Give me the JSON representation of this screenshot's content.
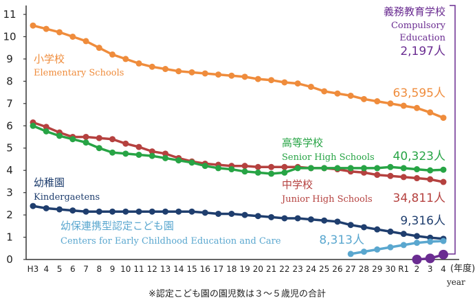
{
  "chart_data": {
    "type": "line",
    "x_categories": [
      "H3",
      "4",
      "5",
      "6",
      "7",
      "8",
      "9",
      "10",
      "11",
      "12",
      "13",
      "14",
      "15",
      "16",
      "17",
      "18",
      "19",
      "20",
      "21",
      "22",
      "23",
      "24",
      "25",
      "26",
      "27",
      "28",
      "29",
      "30",
      "R1",
      "2",
      "3",
      "4"
    ],
    "x_unit": "(年度)",
    "x_unit_en": "year",
    "y_ticks": [
      0,
      1,
      2,
      3,
      4,
      5,
      6,
      7,
      8,
      9,
      10,
      11
    ],
    "ylim": [
      0,
      11.4
    ],
    "grid": false,
    "note": "※認定こども園の園児数は３～５歳児の合計",
    "series": [
      {
        "key": "elementary",
        "name_jp": "小学校",
        "name_en": "Elementary Schools",
        "end_label": "63,595人",
        "color": "#ef8c3c",
        "start_index": 0,
        "values": [
          10.5,
          10.35,
          10.2,
          10.0,
          9.8,
          9.5,
          9.2,
          9.0,
          8.8,
          8.65,
          8.55,
          8.45,
          8.4,
          8.35,
          8.3,
          8.25,
          8.2,
          8.1,
          8.05,
          7.95,
          7.9,
          7.75,
          7.55,
          7.45,
          7.35,
          7.2,
          7.1,
          7.0,
          6.9,
          6.8,
          6.6,
          6.36
        ]
      },
      {
        "key": "junior",
        "name_jp": "中学校",
        "name_en": "Junior High Schools",
        "end_label": "34,811人",
        "color": "#b5413f",
        "start_index": 0,
        "values": [
          6.15,
          5.95,
          5.7,
          5.5,
          5.5,
          5.45,
          5.4,
          5.2,
          5.05,
          4.85,
          4.75,
          4.55,
          4.4,
          4.3,
          4.25,
          4.2,
          4.2,
          4.15,
          4.15,
          4.15,
          4.15,
          4.1,
          4.1,
          4.05,
          3.95,
          3.9,
          3.8,
          3.75,
          3.7,
          3.65,
          3.6,
          3.48
        ]
      },
      {
        "key": "senior",
        "name_jp": "高等学校",
        "name_en": "Senior High Schools",
        "end_label": "40,323人",
        "color": "#27a445",
        "start_index": 0,
        "values": [
          6.0,
          5.75,
          5.55,
          5.4,
          5.25,
          5.0,
          4.8,
          4.75,
          4.7,
          4.65,
          4.55,
          4.45,
          4.35,
          4.2,
          4.1,
          4.05,
          3.95,
          3.9,
          3.85,
          3.9,
          4.1,
          4.1,
          4.1,
          4.1,
          4.1,
          4.1,
          4.1,
          4.15,
          4.1,
          4.05,
          4.0,
          4.03
        ]
      },
      {
        "key": "kindergarten",
        "name_jp": "幼稚園",
        "name_en": "Kindergaetens",
        "end_label": "9,316人",
        "color": "#1f3e6e",
        "start_index": 0,
        "values": [
          2.4,
          2.3,
          2.25,
          2.2,
          2.15,
          2.15,
          2.15,
          2.15,
          2.15,
          2.15,
          2.15,
          2.15,
          2.15,
          2.1,
          2.05,
          2.05,
          2.0,
          1.95,
          1.9,
          1.85,
          1.85,
          1.8,
          1.75,
          1.7,
          1.55,
          1.45,
          1.35,
          1.25,
          1.15,
          1.05,
          0.98,
          0.93
        ]
      },
      {
        "key": "certified",
        "name_jp": "幼保連携型認定こども園",
        "name_en": "Centers for Early Childhood Education and Care",
        "end_label": "8,313人",
        "color": "#5aa7cf",
        "start_index": 24,
        "values": [
          0.25,
          0.35,
          0.45,
          0.55,
          0.65,
          0.75,
          0.8,
          0.83
        ]
      },
      {
        "key": "compulsory",
        "name_jp": "義務教育学校",
        "name_en": "Compulsory Education",
        "end_label": "2,197人",
        "color": "#6a2c91",
        "start_index": 29,
        "values": [
          0.0,
          0.05,
          0.22
        ]
      }
    ]
  }
}
